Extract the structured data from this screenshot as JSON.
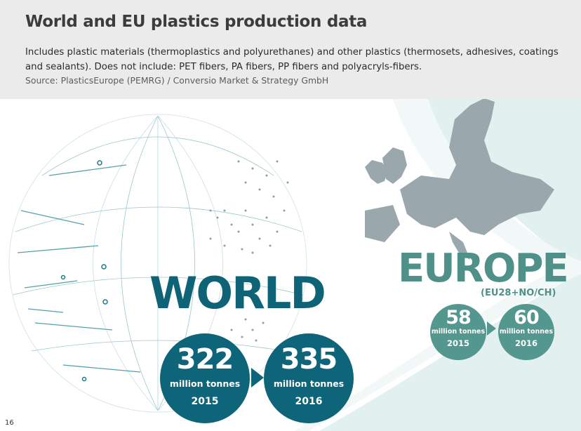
{
  "title": "World and EU plastics production data",
  "description": "Includes plastic materials (thermoplastics and polyurethanes) and other plastics (thermosets, adhesives, coatings and sealants). Does not include: PET fibers, PA fibers, PP fibers and polyacryls-fibers.",
  "source": "Source: PlasticsEurope (PEMRG) / Conversio Market & Strategy GmbH",
  "world": {
    "label": "WORLD",
    "items": [
      {
        "value": "322",
        "unit": "million tonnes",
        "year": "2015"
      },
      {
        "value": "335",
        "unit": "million tonnes",
        "year": "2016"
      }
    ]
  },
  "europe": {
    "label": "EUROPE",
    "sublabel": "(EU28+NO/CH)",
    "items": [
      {
        "value": "58",
        "unit": "million tonnes",
        "year": "2015"
      },
      {
        "value": "60",
        "unit": "million tonnes",
        "year": "2016"
      }
    ]
  },
  "page_number": "16",
  "colors": {
    "world": "#0e6478",
    "europe": "#54978e",
    "header_bg": "#ebebeb"
  }
}
